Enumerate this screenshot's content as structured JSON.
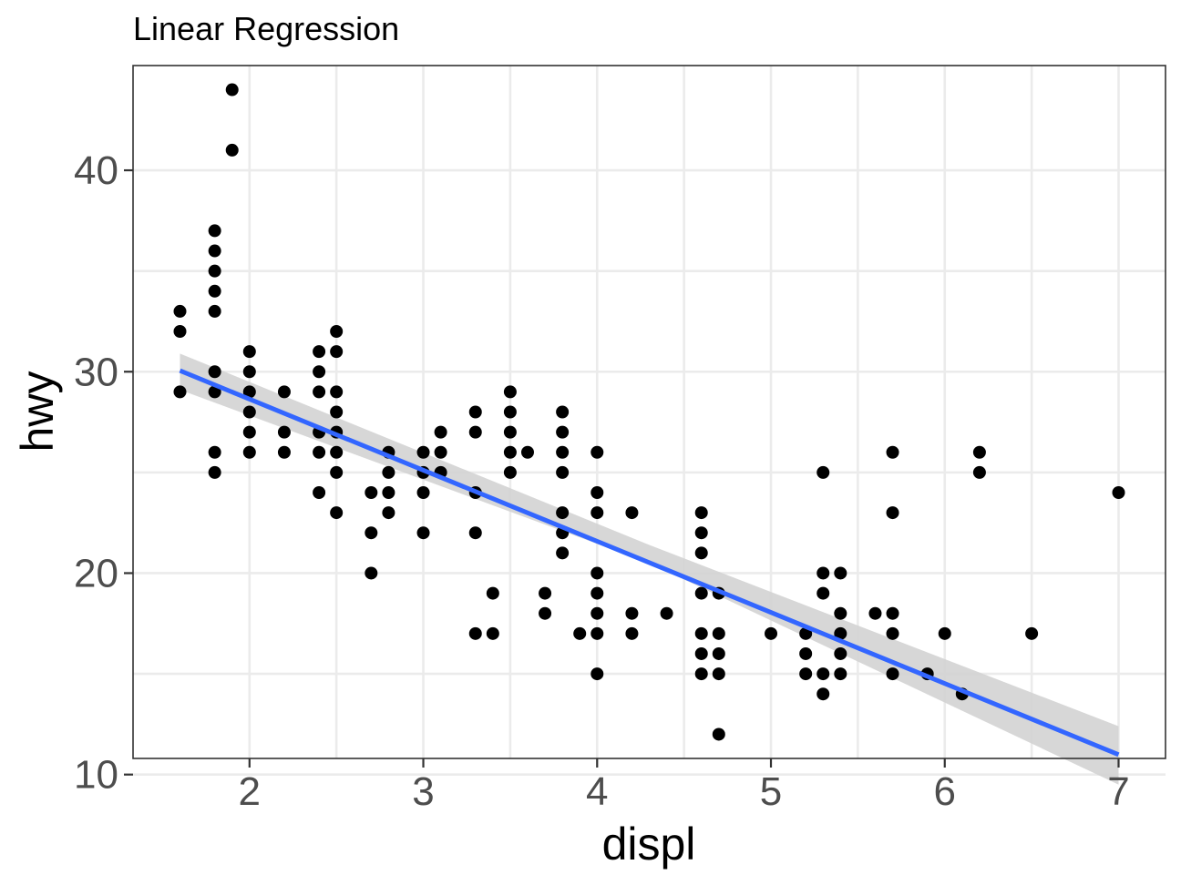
{
  "chart_data": {
    "type": "scatter",
    "title": "Linear Regression",
    "xlabel": "displ",
    "ylabel": "hwy",
    "xlim": [
      1.33,
      7.27
    ],
    "ylim": [
      10.8,
      45.2
    ],
    "x_ticks": [
      2,
      3,
      4,
      5,
      6,
      7
    ],
    "y_ticks": [
      10,
      20,
      30,
      40
    ],
    "grid": true,
    "legend": "none",
    "colors": {
      "points": "#000000",
      "line": "#3366ff",
      "band": "#d3d3d3"
    },
    "points": [
      [
        1.6,
        33
      ],
      [
        1.6,
        32
      ],
      [
        1.6,
        29
      ],
      [
        1.8,
        37
      ],
      [
        1.8,
        36
      ],
      [
        1.8,
        35
      ],
      [
        1.8,
        34
      ],
      [
        1.8,
        33
      ],
      [
        1.8,
        30
      ],
      [
        1.8,
        29
      ],
      [
        1.8,
        26
      ],
      [
        1.8,
        25
      ],
      [
        1.9,
        44
      ],
      [
        1.9,
        41
      ],
      [
        2.0,
        31
      ],
      [
        2.0,
        30
      ],
      [
        2.0,
        29
      ],
      [
        2.0,
        28
      ],
      [
        2.0,
        27
      ],
      [
        2.0,
        26
      ],
      [
        2.2,
        29
      ],
      [
        2.2,
        27
      ],
      [
        2.2,
        26
      ],
      [
        2.4,
        31
      ],
      [
        2.4,
        30
      ],
      [
        2.4,
        29
      ],
      [
        2.4,
        27
      ],
      [
        2.4,
        26
      ],
      [
        2.4,
        24
      ],
      [
        2.5,
        32
      ],
      [
        2.5,
        31
      ],
      [
        2.5,
        29
      ],
      [
        2.5,
        28
      ],
      [
        2.5,
        27
      ],
      [
        2.5,
        26
      ],
      [
        2.5,
        25
      ],
      [
        2.5,
        23
      ],
      [
        2.7,
        24
      ],
      [
        2.7,
        22
      ],
      [
        2.7,
        20
      ],
      [
        2.8,
        26
      ],
      [
        2.8,
        25
      ],
      [
        2.8,
        24
      ],
      [
        2.8,
        23
      ],
      [
        3.0,
        26
      ],
      [
        3.0,
        25
      ],
      [
        3.0,
        24
      ],
      [
        3.0,
        22
      ],
      [
        3.1,
        27
      ],
      [
        3.1,
        26
      ],
      [
        3.1,
        25
      ],
      [
        3.3,
        28
      ],
      [
        3.3,
        27
      ],
      [
        3.3,
        24
      ],
      [
        3.3,
        22
      ],
      [
        3.3,
        17
      ],
      [
        3.4,
        19
      ],
      [
        3.4,
        17
      ],
      [
        3.5,
        29
      ],
      [
        3.5,
        28
      ],
      [
        3.5,
        27
      ],
      [
        3.5,
        26
      ],
      [
        3.5,
        25
      ],
      [
        3.6,
        26
      ],
      [
        3.7,
        19
      ],
      [
        3.7,
        18
      ],
      [
        3.8,
        28
      ],
      [
        3.8,
        27
      ],
      [
        3.8,
        26
      ],
      [
        3.8,
        25
      ],
      [
        3.8,
        23
      ],
      [
        3.8,
        22
      ],
      [
        3.8,
        21
      ],
      [
        3.9,
        17
      ],
      [
        4.0,
        26
      ],
      [
        4.0,
        24
      ],
      [
        4.0,
        23
      ],
      [
        4.0,
        20
      ],
      [
        4.0,
        19
      ],
      [
        4.0,
        18
      ],
      [
        4.0,
        17
      ],
      [
        4.0,
        15
      ],
      [
        4.2,
        23
      ],
      [
        4.2,
        18
      ],
      [
        4.2,
        17
      ],
      [
        4.4,
        18
      ],
      [
        4.6,
        23
      ],
      [
        4.6,
        22
      ],
      [
        4.6,
        21
      ],
      [
        4.6,
        19
      ],
      [
        4.6,
        17
      ],
      [
        4.6,
        16
      ],
      [
        4.6,
        15
      ],
      [
        4.7,
        19
      ],
      [
        4.7,
        17
      ],
      [
        4.7,
        16
      ],
      [
        4.7,
        15
      ],
      [
        4.7,
        12
      ],
      [
        5.0,
        17
      ],
      [
        5.2,
        17
      ],
      [
        5.2,
        16
      ],
      [
        5.2,
        15
      ],
      [
        5.3,
        25
      ],
      [
        5.3,
        20
      ],
      [
        5.3,
        19
      ],
      [
        5.3,
        15
      ],
      [
        5.3,
        14
      ],
      [
        5.4,
        20
      ],
      [
        5.4,
        18
      ],
      [
        5.4,
        17
      ],
      [
        5.4,
        16
      ],
      [
        5.4,
        15
      ],
      [
        5.6,
        18
      ],
      [
        5.7,
        26
      ],
      [
        5.7,
        23
      ],
      [
        5.7,
        18
      ],
      [
        5.7,
        17
      ],
      [
        5.7,
        15
      ],
      [
        5.9,
        15
      ],
      [
        6.0,
        17
      ],
      [
        6.1,
        14
      ],
      [
        6.2,
        26
      ],
      [
        6.2,
        25
      ],
      [
        6.5,
        17
      ],
      [
        7.0,
        24
      ]
    ],
    "regression": {
      "method": "lm",
      "intercept": 35.7,
      "slope": -3.53,
      "x_range": [
        1.6,
        7.0
      ],
      "ci_band": [
        [
          1.6,
          29.1,
          30.9
        ],
        [
          4.3,
          20.5,
          21.4
        ],
        [
          7.0,
          9.5,
          12.4
        ]
      ]
    }
  }
}
